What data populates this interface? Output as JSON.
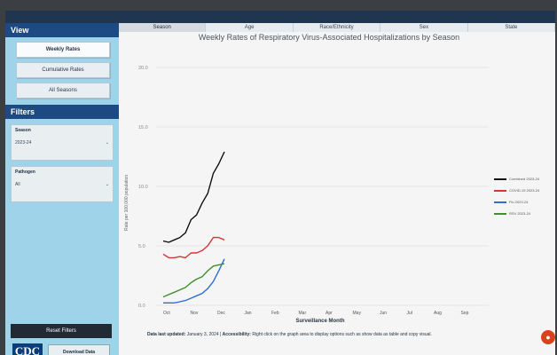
{
  "sidebar": {
    "view_header": "View",
    "view_buttons": [
      "Weekly Rates",
      "Cumulative Rates",
      "All Seasons"
    ],
    "filters_header": "Filters",
    "filters": [
      {
        "label": "Season",
        "value": "2023-24"
      },
      {
        "label": "Pathogen",
        "value": "All"
      }
    ],
    "reset_label": "Reset Filters",
    "logo_text": "CDC",
    "download_label": "Download Data"
  },
  "tabs": [
    "Season",
    "Age",
    "Race/Ethnicity",
    "Sex",
    "State"
  ],
  "chart": {
    "title": "Weekly Rates of Respiratory Virus-Associated Hospitalizations by Season",
    "ylabel": "Rate per 100,000 population",
    "xlabel": "Surveillance Month"
  },
  "chart_data": {
    "type": "line",
    "title": "Weekly Rates of Respiratory Virus-Associated Hospitalizations by Season",
    "xlabel": "Surveillance Month",
    "ylabel": "Rate per 100,000 population",
    "categories": [
      "Oct",
      "Nov",
      "Dec",
      "Jan",
      "Feb",
      "Mar",
      "Apr",
      "May",
      "Jun",
      "Jul",
      "Aug",
      "Sep"
    ],
    "ylim": [
      0,
      20
    ],
    "yticks": [
      "0.0",
      "5.0",
      "10.0",
      "15.0",
      "20.0"
    ],
    "x_weeks": [
      0,
      1,
      2,
      3,
      4,
      5,
      6,
      7,
      8,
      9,
      10,
      11
    ],
    "series": [
      {
        "name": "Combined 2023-24",
        "color": "#111111",
        "values": [
          5.4,
          5.3,
          5.5,
          5.7,
          6.1,
          7.2,
          7.6,
          8.6,
          9.4,
          11.1,
          11.9,
          12.9
        ]
      },
      {
        "name": "COVID-19 2023-24",
        "color": "#d93434",
        "values": [
          4.3,
          4.0,
          4.0,
          4.1,
          4.0,
          4.4,
          4.4,
          4.6,
          5.0,
          5.7,
          5.7,
          5.5
        ]
      },
      {
        "name": "Flu 2023-24",
        "color": "#2d6fd1",
        "values": [
          0.2,
          0.2,
          0.2,
          0.3,
          0.4,
          0.6,
          0.8,
          1.0,
          1.4,
          2.0,
          2.9,
          3.9
        ]
      },
      {
        "name": "RSV 2023-24",
        "color": "#3f8f2d",
        "values": [
          0.7,
          0.9,
          1.1,
          1.3,
          1.5,
          1.9,
          2.2,
          2.4,
          2.9,
          3.3,
          3.4,
          3.5
        ]
      }
    ],
    "grid": true,
    "legend_position": "right"
  },
  "footer": {
    "updated_label": "Data last updated:",
    "updated_date": "January 3, 2024",
    "accessibility_label": "Accessibility:",
    "accessibility_text": "Right click on the graph area to display options such as show data as table and copy visual."
  }
}
